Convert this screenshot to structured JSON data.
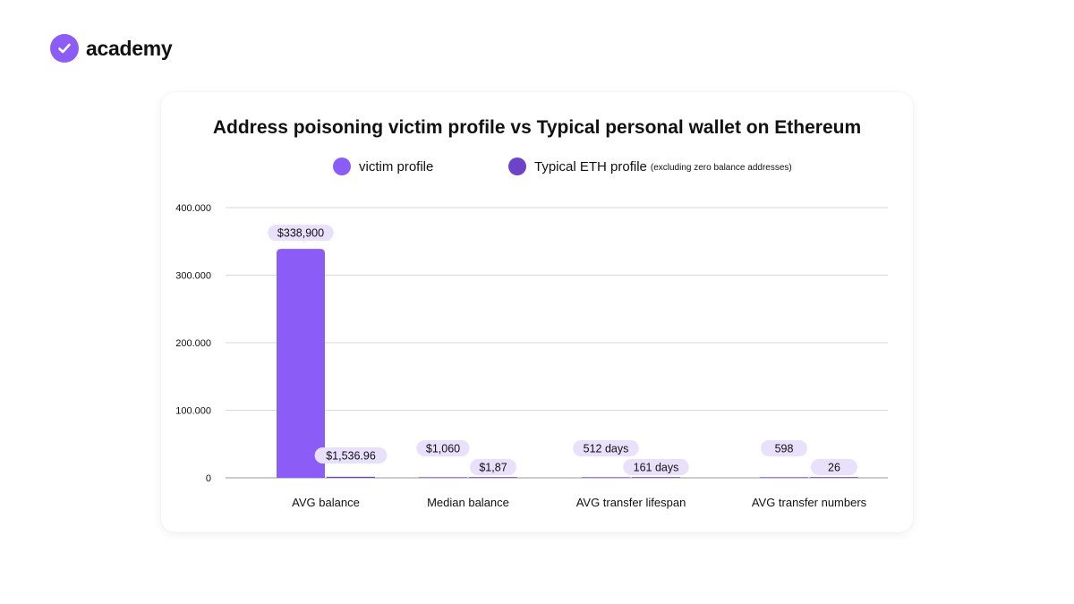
{
  "brand": {
    "name": "academy",
    "logo_icon": "check-icon",
    "logo_color": "#8b5cf6"
  },
  "chart_data": {
    "type": "bar",
    "title": "Address poisoning victim profile vs Typical personal wallet on Ethereum",
    "xlabel": "",
    "ylabel": "",
    "ylim": [
      0,
      400000
    ],
    "yticks": [
      0,
      100000,
      200000,
      300000,
      400000
    ],
    "ytick_labels": [
      "0",
      "100.000",
      "200.000",
      "300.000",
      "400.000"
    ],
    "grid": true,
    "legend_position": "top-center",
    "categories": [
      "AVG balance",
      "Median balance",
      "AVG transfer lifespan",
      "AVG transfer numbers"
    ],
    "series": [
      {
        "name": "victim profile",
        "color": "#8b5cf6",
        "values": [
          338900,
          1060,
          512,
          598
        ],
        "labels": [
          "$338,900",
          "$1,060",
          "512 days",
          "598"
        ]
      },
      {
        "name": "Typical ETH profile",
        "name_note": "(excluding zero balance addresses)",
        "color": "#6d44c9",
        "values": [
          1536.96,
          1.87,
          161,
          26
        ],
        "labels": [
          "$1,536.96",
          "$1,87",
          "161 days",
          "26"
        ]
      }
    ],
    "label_bg_color": "#e9e0fb"
  }
}
